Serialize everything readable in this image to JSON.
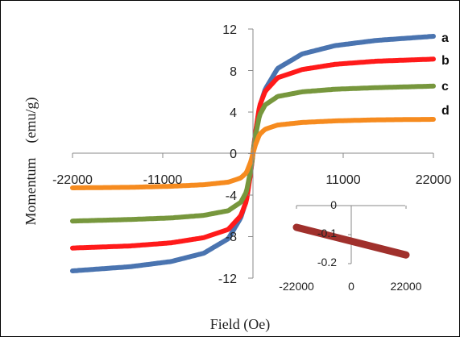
{
  "chart_data": {
    "type": "line",
    "xlabel": "Field (Oe)",
    "ylabel": "Momentum    (emu/g)",
    "xlim": [
      -22000,
      22000
    ],
    "ylim": [
      -12,
      12
    ],
    "xticks": [
      "-22000",
      "-11000",
      "0",
      "11000",
      "22000"
    ],
    "yticks": [
      "12",
      "8",
      "4",
      "0",
      "-4",
      "-8",
      "-12"
    ],
    "grid": false,
    "legend": "right",
    "series": [
      {
        "name": "a",
        "color": "#4a74b0",
        "ms": 11.3,
        "x": [
          -22000,
          -15000,
          -10000,
          -6000,
          -3000,
          -1500,
          -800,
          -300,
          0,
          300,
          800,
          1500,
          3000,
          6000,
          10000,
          15000,
          22000
        ],
        "y": [
          -11.3,
          -10.9,
          -10.4,
          -9.6,
          -8.2,
          -6.2,
          -4.5,
          -1.9,
          0,
          1.9,
          4.5,
          6.2,
          8.2,
          9.6,
          10.4,
          10.9,
          11.3
        ]
      },
      {
        "name": "b",
        "color": "#ff1a1a",
        "ms": 9.1,
        "x": [
          -22000,
          -15000,
          -10000,
          -6000,
          -3000,
          -1500,
          -800,
          -300,
          0,
          300,
          800,
          1500,
          3000,
          6000,
          10000,
          15000,
          22000
        ],
        "y": [
          -9.1,
          -8.9,
          -8.6,
          -8.1,
          -7.3,
          -6.0,
          -4.6,
          -2.0,
          0,
          2.0,
          4.6,
          6.0,
          7.3,
          8.1,
          8.6,
          8.9,
          9.1
        ]
      },
      {
        "name": "c",
        "color": "#77973d",
        "ms": 6.5,
        "x": [
          -22000,
          -15000,
          -10000,
          -6000,
          -3000,
          -1500,
          -800,
          -300,
          0,
          300,
          800,
          1500,
          3000,
          6000,
          10000,
          15000,
          22000
        ],
        "y": [
          -6.5,
          -6.35,
          -6.2,
          -5.95,
          -5.5,
          -4.7,
          -3.7,
          -1.7,
          0,
          1.7,
          3.7,
          4.7,
          5.5,
          5.95,
          6.2,
          6.35,
          6.5
        ]
      },
      {
        "name": "d",
        "color": "#f68b1f",
        "ms": 3.3,
        "x": [
          -22000,
          -15000,
          -10000,
          -6000,
          -3000,
          -1500,
          -800,
          -300,
          0,
          300,
          800,
          1500,
          3000,
          6000,
          10000,
          15000,
          22000
        ],
        "y": [
          -3.3,
          -3.25,
          -3.15,
          -3.0,
          -2.75,
          -2.35,
          -1.85,
          -0.85,
          0,
          0.85,
          1.85,
          2.35,
          2.75,
          3.0,
          3.15,
          3.25,
          3.3
        ]
      }
    ],
    "inset": {
      "type": "scatter",
      "xlim": [
        -22000,
        22000
      ],
      "ylim": [
        -0.2,
        0
      ],
      "xticks": [
        "-22000",
        "0",
        "22000"
      ],
      "yticks": [
        "0",
        "-0.1",
        "-0.2"
      ],
      "color": "#a0302c",
      "x": [
        -22000,
        22000
      ],
      "y": [
        -0.075,
        -0.17
      ]
    }
  }
}
